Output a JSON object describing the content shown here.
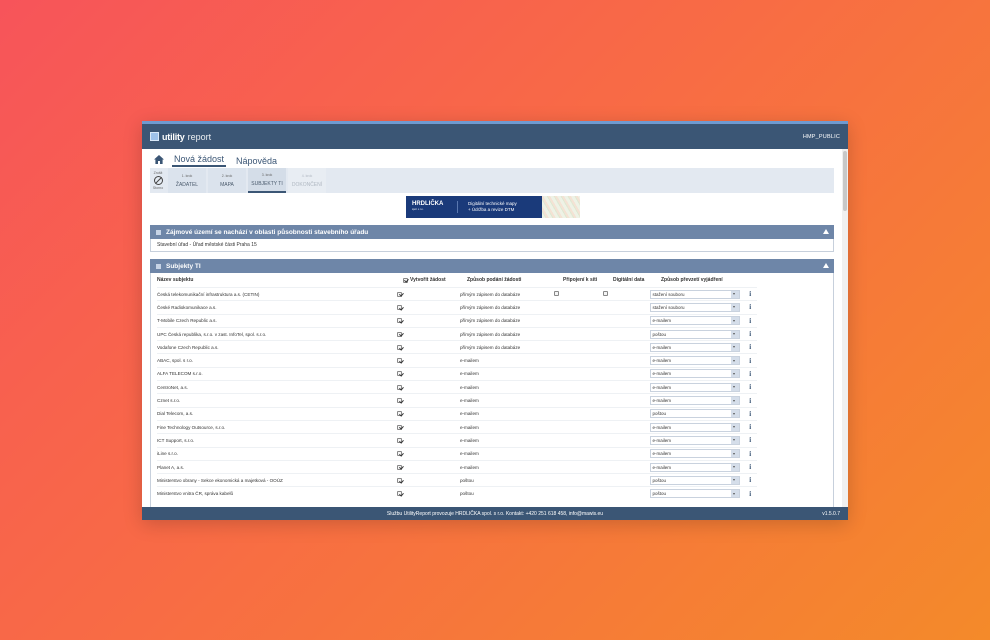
{
  "app": {
    "logo_bold": "utility",
    "logo_light": "report",
    "user": "HMP_PUBLIC"
  },
  "nav": {
    "tabs": [
      {
        "label": "Nová žádost"
      },
      {
        "label": "Nápověda"
      }
    ]
  },
  "wizard": {
    "cancel_top": "Zrušit",
    "cancel_label": "Storno",
    "steps": [
      {
        "num": "1. krok",
        "label": "ŽADATEL"
      },
      {
        "num": "2. krok",
        "label": "MAPA"
      },
      {
        "num": "3. krok",
        "label": "SUBJEKTY TI"
      },
      {
        "num": "4. krok",
        "label": "DOKONČENÍ"
      }
    ]
  },
  "banner": {
    "brand": "HRDLIČKA",
    "brand_sub": "spol. s r.o.",
    "line1": "Digitální technické mapy",
    "line2": "+ Údržba a revize DTM"
  },
  "section_area": {
    "title": "Zájmové území se nachází v oblasti působnosti stavebního úřadu",
    "text": "Stavební úřad - Úřad městské části Praha 15"
  },
  "section_subjects": {
    "title": "Subjekty TI",
    "headers": {
      "name": "Název subjektu",
      "create": "Vytvořit žádost",
      "way": "Způsob podání žádosti",
      "conn": "Připojení k síti",
      "digital": "Digitální data",
      "reply": "Způsob převzetí vyjádření"
    },
    "rows": [
      {
        "name": "Česká telekomunikační infrastruktura a.s. (CETIN)",
        "way": "přímým zápisem do databáze",
        "conn_box": true,
        "dig_box": true,
        "reply": "stažení souboru"
      },
      {
        "name": "České Radiokomunikace a.s.",
        "way": "přímým zápisem do databáze",
        "reply": "stažení souboru"
      },
      {
        "name": "T-Mobile Czech Republic a.s.",
        "way": "přímým zápisem do databáze",
        "reply": "e-mailem"
      },
      {
        "name": "UPC Česká republika, s.r.o. v zast. InfoTel, spol. s.r.o.",
        "way": "přímým zápisem do databáze",
        "reply": "poštou"
      },
      {
        "name": "Vodafone Czech Republic a.s.",
        "way": "přímým zápisem do databáze",
        "reply": "e-mailem"
      },
      {
        "name": "ABAC, spol. s r.o.",
        "way": "e-mailem",
        "reply": "e-mailem"
      },
      {
        "name": "ALFA TELECOM s.r.o.",
        "way": "e-mailem",
        "reply": "e-mailem"
      },
      {
        "name": "CentroNet, a.s.",
        "way": "e-mailem",
        "reply": "e-mailem"
      },
      {
        "name": "Cznet s.r.o.",
        "way": "e-mailem",
        "reply": "e-mailem"
      },
      {
        "name": "Dial Telecom, a.s.",
        "way": "e-mailem",
        "reply": "poštou"
      },
      {
        "name": "Fine Technology Outsource, s.r.o.",
        "way": "e-mailem",
        "reply": "e-mailem"
      },
      {
        "name": "ICT Support, s.r.o.",
        "way": "e-mailem",
        "reply": "e-mailem"
      },
      {
        "name": "iLine s.r.o.",
        "way": "e-mailem",
        "reply": "e-mailem"
      },
      {
        "name": "Planet A, a.s.",
        "way": "e-mailem",
        "reply": "e-mailem"
      },
      {
        "name": "Ministerstvo obrany - Sekce ekonomická a majetková - OOÚZ",
        "way": "poštou",
        "reply": "poštou"
      },
      {
        "name": "Ministerstvo vnitra ČR, správa kabelů",
        "way": "poštou",
        "reply": "poštou"
      }
    ]
  },
  "footer": {
    "text": "Službu UtilityReport provozuje HRDLIČKA spol. s r.o. Kontakt: +420 251 618 458, info@mawis.eu",
    "version": "v1.5.0.7"
  }
}
